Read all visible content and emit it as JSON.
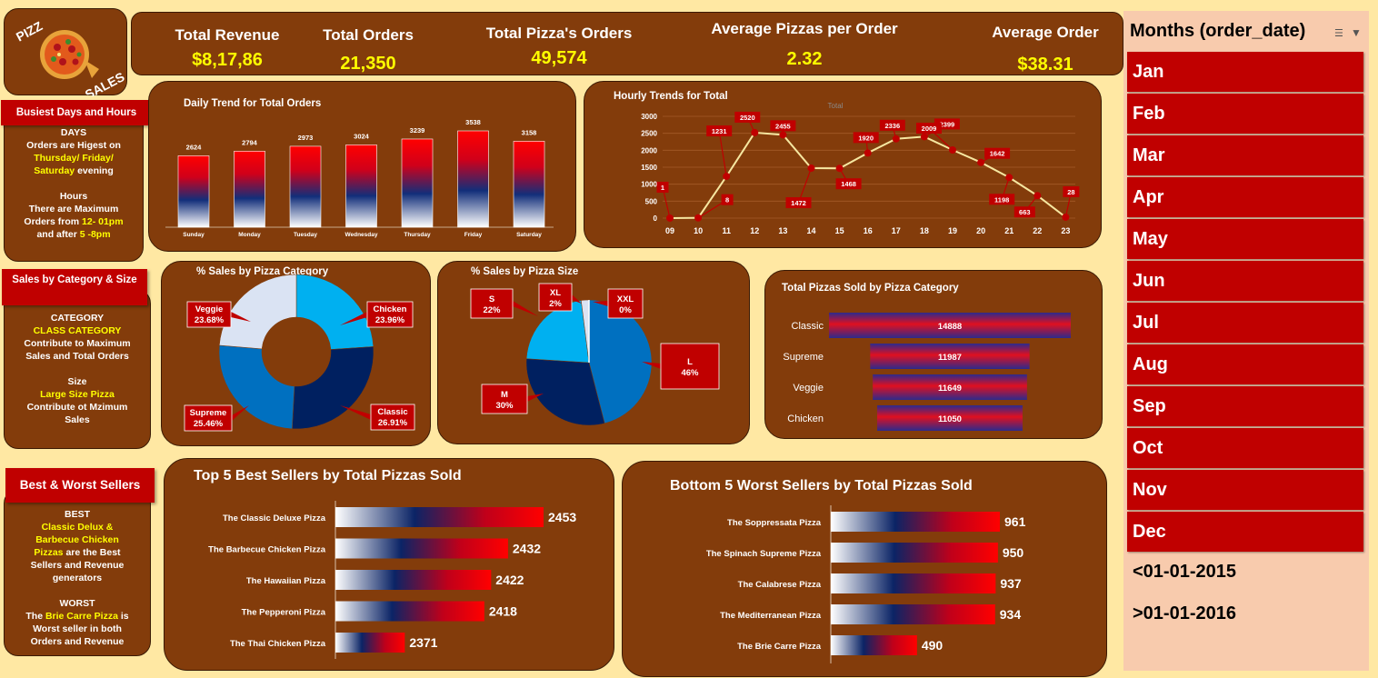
{
  "logo": {
    "line1": "PIZZ",
    "line2": "SALES"
  },
  "kpis": [
    {
      "label": "Total Revenue",
      "value": "$8,17,86"
    },
    {
      "label": "Total Orders",
      "value": "21,350"
    },
    {
      "label": "Total Pizza's Orders",
      "value": "49,574"
    },
    {
      "label": "Average Pizzas per Order",
      "value": "2.32"
    },
    {
      "label": "Average Order",
      "value": "$38.31"
    }
  ],
  "side": {
    "busiest": {
      "title": "Busiest Days and Hours",
      "days_head": "DAYS",
      "days_l1": "Orders are Higest on",
      "days_hl1": "Thursday/ Friday/",
      "days_hl2": "Saturday",
      "days_l2": " evening",
      "hours_head": "Hours",
      "hours_l1": "There are Maximum",
      "hours_l2a": "Orders from ",
      "hours_hl1": "12- 01pm",
      "hours_l3a": "and after  ",
      "hours_hl2": "5 -8pm"
    },
    "category": {
      "title": "Sales by Category & Size",
      "cat_head": "CATEGORY",
      "cat_hl": "CLASS CATEGORY",
      "cat_l1": "Contribute to Maximum",
      "cat_l2": "Sales and Total Orders",
      "size_head": "Size",
      "size_hl": "Large Size Pizza",
      "size_l1": "Contribute ot Mzimum",
      "size_l2": "Sales"
    },
    "sellers": {
      "title": "Best & Worst Sellers",
      "best_head": "BEST",
      "best_hl1": "Classic Delux &",
      "best_hl2": "Barbecue  Chicken",
      "best_hl3": "Pizzas",
      "best_l1": " are the Best",
      "best_l2": "Sellers and Revenue",
      "best_l3": "generators",
      "worst_head": "WORST",
      "worst_l1a": "The ",
      "worst_hl": "Brie Carre Pizza",
      "worst_l1b": " is",
      "worst_l2": "Worst seller in both",
      "worst_l3": "Orders  and Revenue"
    }
  },
  "slicer": {
    "title": "Months (order_date)",
    "months": [
      "Jan",
      "Feb",
      "Mar",
      "Apr",
      "May",
      "Jun",
      "Jul",
      "Aug",
      "Sep",
      "Oct",
      "Nov",
      "Dec"
    ],
    "extra": [
      "<01-01-2015",
      ">01-01-2016"
    ]
  },
  "colors": {
    "panel": "#833C0B",
    "background": "#FFE8A3",
    "accent_red": "#C00000",
    "highlight": "#FFFF00",
    "slicer_bg": "#F8CBAD"
  },
  "chart_data": [
    {
      "id": "daily",
      "type": "bar",
      "title": "Daily Trend for Total Orders",
      "categories": [
        "Sunday",
        "Monday",
        "Tuesday",
        "Wednesday",
        "Thursday",
        "Friday",
        "Saturday"
      ],
      "values": [
        2624,
        2794,
        2973,
        3024,
        3239,
        3538,
        3158
      ]
    },
    {
      "id": "hourly",
      "type": "line",
      "title": "Hourly Trends for Total",
      "legend": "Total",
      "x": [
        "09",
        "10",
        "11",
        "12",
        "13",
        "14",
        "15",
        "16",
        "17",
        "18",
        "19",
        "20",
        "21",
        "22",
        "23"
      ],
      "values": [
        1,
        8,
        1231,
        2520,
        2455,
        1472,
        1468,
        1920,
        2336,
        2399,
        2009,
        1642,
        1198,
        663,
        28
      ],
      "ylim": [
        0,
        3000
      ],
      "yticks": [
        0,
        500,
        1000,
        1500,
        2000,
        2500,
        3000
      ],
      "grid": true
    },
    {
      "id": "category_pct",
      "type": "pie",
      "donut": true,
      "title": "% Sales by Pizza Category",
      "labels": [
        "Chicken",
        "Classic",
        "Supreme",
        "Veggie"
      ],
      "values": [
        23.96,
        26.91,
        25.46,
        23.68
      ],
      "value_labels": [
        "23.96%",
        "26.91%",
        "25.46%",
        "23.68%"
      ],
      "colors": [
        "#00B0F0",
        "#002060",
        "#0070C0",
        "#DAE3F3"
      ]
    },
    {
      "id": "size_pct",
      "type": "pie",
      "title": "% Sales by Pizza Size",
      "labels": [
        "L",
        "M",
        "S",
        "XL",
        "XXL"
      ],
      "values": [
        46,
        30,
        22,
        2,
        0
      ],
      "value_labels": [
        "46%",
        "30%",
        "22%",
        "2%",
        "0%"
      ],
      "colors": [
        "#0070C0",
        "#002060",
        "#00B0F0",
        "#DAE3F3",
        "#FFFFFF"
      ]
    },
    {
      "id": "category_total",
      "type": "bar",
      "orientation": "horizontal",
      "title": "Total Pizzas Sold by Pizza Category",
      "categories": [
        "Classic",
        "Supreme",
        "Veggie",
        "Chicken"
      ],
      "values": [
        14888,
        11987,
        11649,
        11050
      ]
    },
    {
      "id": "top5",
      "type": "bar",
      "orientation": "horizontal",
      "title": "Top 5 Best Sellers by Total Pizzas Sold",
      "categories": [
        "The Classic Deluxe Pizza",
        "The Barbecue Chicken Pizza",
        "The Hawaiian Pizza",
        "The Pepperoni Pizza",
        "The Thai Chicken Pizza"
      ],
      "values": [
        2453,
        2432,
        2422,
        2418,
        2371
      ]
    },
    {
      "id": "bottom5",
      "type": "bar",
      "orientation": "horizontal",
      "title": "Bottom 5 Worst Sellers by Total Pizzas Sold",
      "categories": [
        "The Soppressata Pizza",
        "The Spinach Supreme Pizza",
        "The Calabrese Pizza",
        "The Mediterranean Pizza",
        "The Brie Carre Pizza"
      ],
      "values": [
        961,
        950,
        937,
        934,
        490
      ]
    }
  ]
}
